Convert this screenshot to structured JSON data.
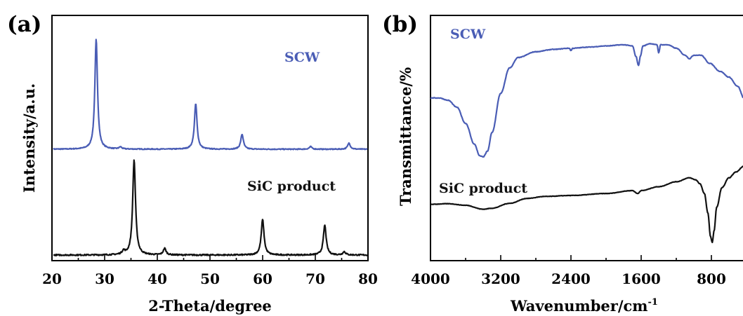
{
  "chart_data": [
    {
      "panel": "(a)",
      "type": "line",
      "xlabel": "2-Theta/degree",
      "ylabel": "Intensity/a.u.",
      "xlim": [
        20,
        80
      ],
      "x_ticks": [
        20,
        30,
        40,
        50,
        60,
        70,
        80
      ],
      "y_ticks": [],
      "grid": false,
      "colors": {
        "SCW": "#4a5db5",
        "SiC product": "#111111"
      },
      "series": [
        {
          "name": "SCW",
          "label_position": "upper-right",
          "baseline": 0.0,
          "noise": 0.025,
          "peaks": [
            [
              28.4,
              6.3
            ],
            [
              33.0,
              0.12
            ],
            [
              47.3,
              2.6
            ],
            [
              56.1,
              0.85
            ],
            [
              69.1,
              0.15
            ],
            [
              76.4,
              0.35
            ]
          ],
          "peak_width": 0.3
        },
        {
          "name": "SiC product",
          "label_position": "upper-right",
          "baseline": 0.0,
          "noise": 0.04,
          "peaks": [
            [
              33.6,
              0.22
            ],
            [
              35.6,
              5.9
            ],
            [
              41.4,
              0.4
            ],
            [
              60.0,
              2.2
            ],
            [
              71.8,
              1.85
            ],
            [
              75.5,
              0.2
            ]
          ],
          "peak_width": 0.32
        }
      ]
    },
    {
      "panel": "(b)",
      "type": "line",
      "xlabel": "Wavenumber/cm",
      "xlabel_sup": "-1",
      "ylabel": "Transmittance/%",
      "xlim": [
        4000,
        400
      ],
      "x_ticks": [
        4000,
        3200,
        2400,
        1600,
        800
      ],
      "y_ticks": [],
      "grid": false,
      "colors": {
        "SCW": "#4a5db5",
        "SiC product": "#111111"
      },
      "series": [
        {
          "name": "SCW",
          "label_position": "upper-left",
          "noise": 0.012,
          "points": [
            [
              4000,
              4.4
            ],
            [
              3900,
              4.4
            ],
            [
              3800,
              4.3
            ],
            [
              3700,
              4.0
            ],
            [
              3600,
              3.3
            ],
            [
              3500,
              2.4
            ],
            [
              3440,
              1.9
            ],
            [
              3400,
              1.85
            ],
            [
              3350,
              2.1
            ],
            [
              3300,
              2.9
            ],
            [
              3200,
              4.6
            ],
            [
              3100,
              5.7
            ],
            [
              3000,
              6.15
            ],
            [
              2800,
              6.4
            ],
            [
              2600,
              6.5
            ],
            [
              2420,
              6.55
            ],
            [
              2400,
              6.45
            ],
            [
              2380,
              6.55
            ],
            [
              2200,
              6.6
            ],
            [
              2000,
              6.65
            ],
            [
              1800,
              6.7
            ],
            [
              1700,
              6.65
            ],
            [
              1660,
              6.2
            ],
            [
              1630,
              5.8
            ],
            [
              1610,
              6.2
            ],
            [
              1580,
              6.65
            ],
            [
              1500,
              6.75
            ],
            [
              1420,
              6.7
            ],
            [
              1400,
              6.35
            ],
            [
              1380,
              6.7
            ],
            [
              1300,
              6.7
            ],
            [
              1200,
              6.55
            ],
            [
              1100,
              6.25
            ],
            [
              1050,
              6.1
            ],
            [
              1000,
              6.25
            ],
            [
              920,
              6.25
            ],
            [
              820,
              5.9
            ],
            [
              700,
              5.55
            ],
            [
              600,
              5.3
            ],
            [
              500,
              4.9
            ],
            [
              430,
              4.4
            ]
          ]
        },
        {
          "name": "SiC product",
          "label_position": "upper-left",
          "noise": 0.01,
          "points": [
            [
              4000,
              1.05
            ],
            [
              3800,
              1.08
            ],
            [
              3600,
              1.0
            ],
            [
              3400,
              0.8
            ],
            [
              3300,
              0.85
            ],
            [
              3100,
              1.1
            ],
            [
              2900,
              1.35
            ],
            [
              2700,
              1.45
            ],
            [
              2400,
              1.5
            ],
            [
              2000,
              1.6
            ],
            [
              1700,
              1.75
            ],
            [
              1640,
              1.6
            ],
            [
              1600,
              1.75
            ],
            [
              1400,
              1.95
            ],
            [
              1200,
              2.2
            ],
            [
              1050,
              2.4
            ],
            [
              980,
              2.3
            ],
            [
              930,
              2.1
            ],
            [
              880,
              1.6
            ],
            [
              840,
              0.6
            ],
            [
              810,
              -0.6
            ],
            [
              790,
              -0.9
            ],
            [
              770,
              -0.3
            ],
            [
              740,
              0.9
            ],
            [
              680,
              1.9
            ],
            [
              600,
              2.4
            ],
            [
              520,
              2.7
            ],
            [
              430,
              3.0
            ]
          ]
        }
      ]
    }
  ]
}
